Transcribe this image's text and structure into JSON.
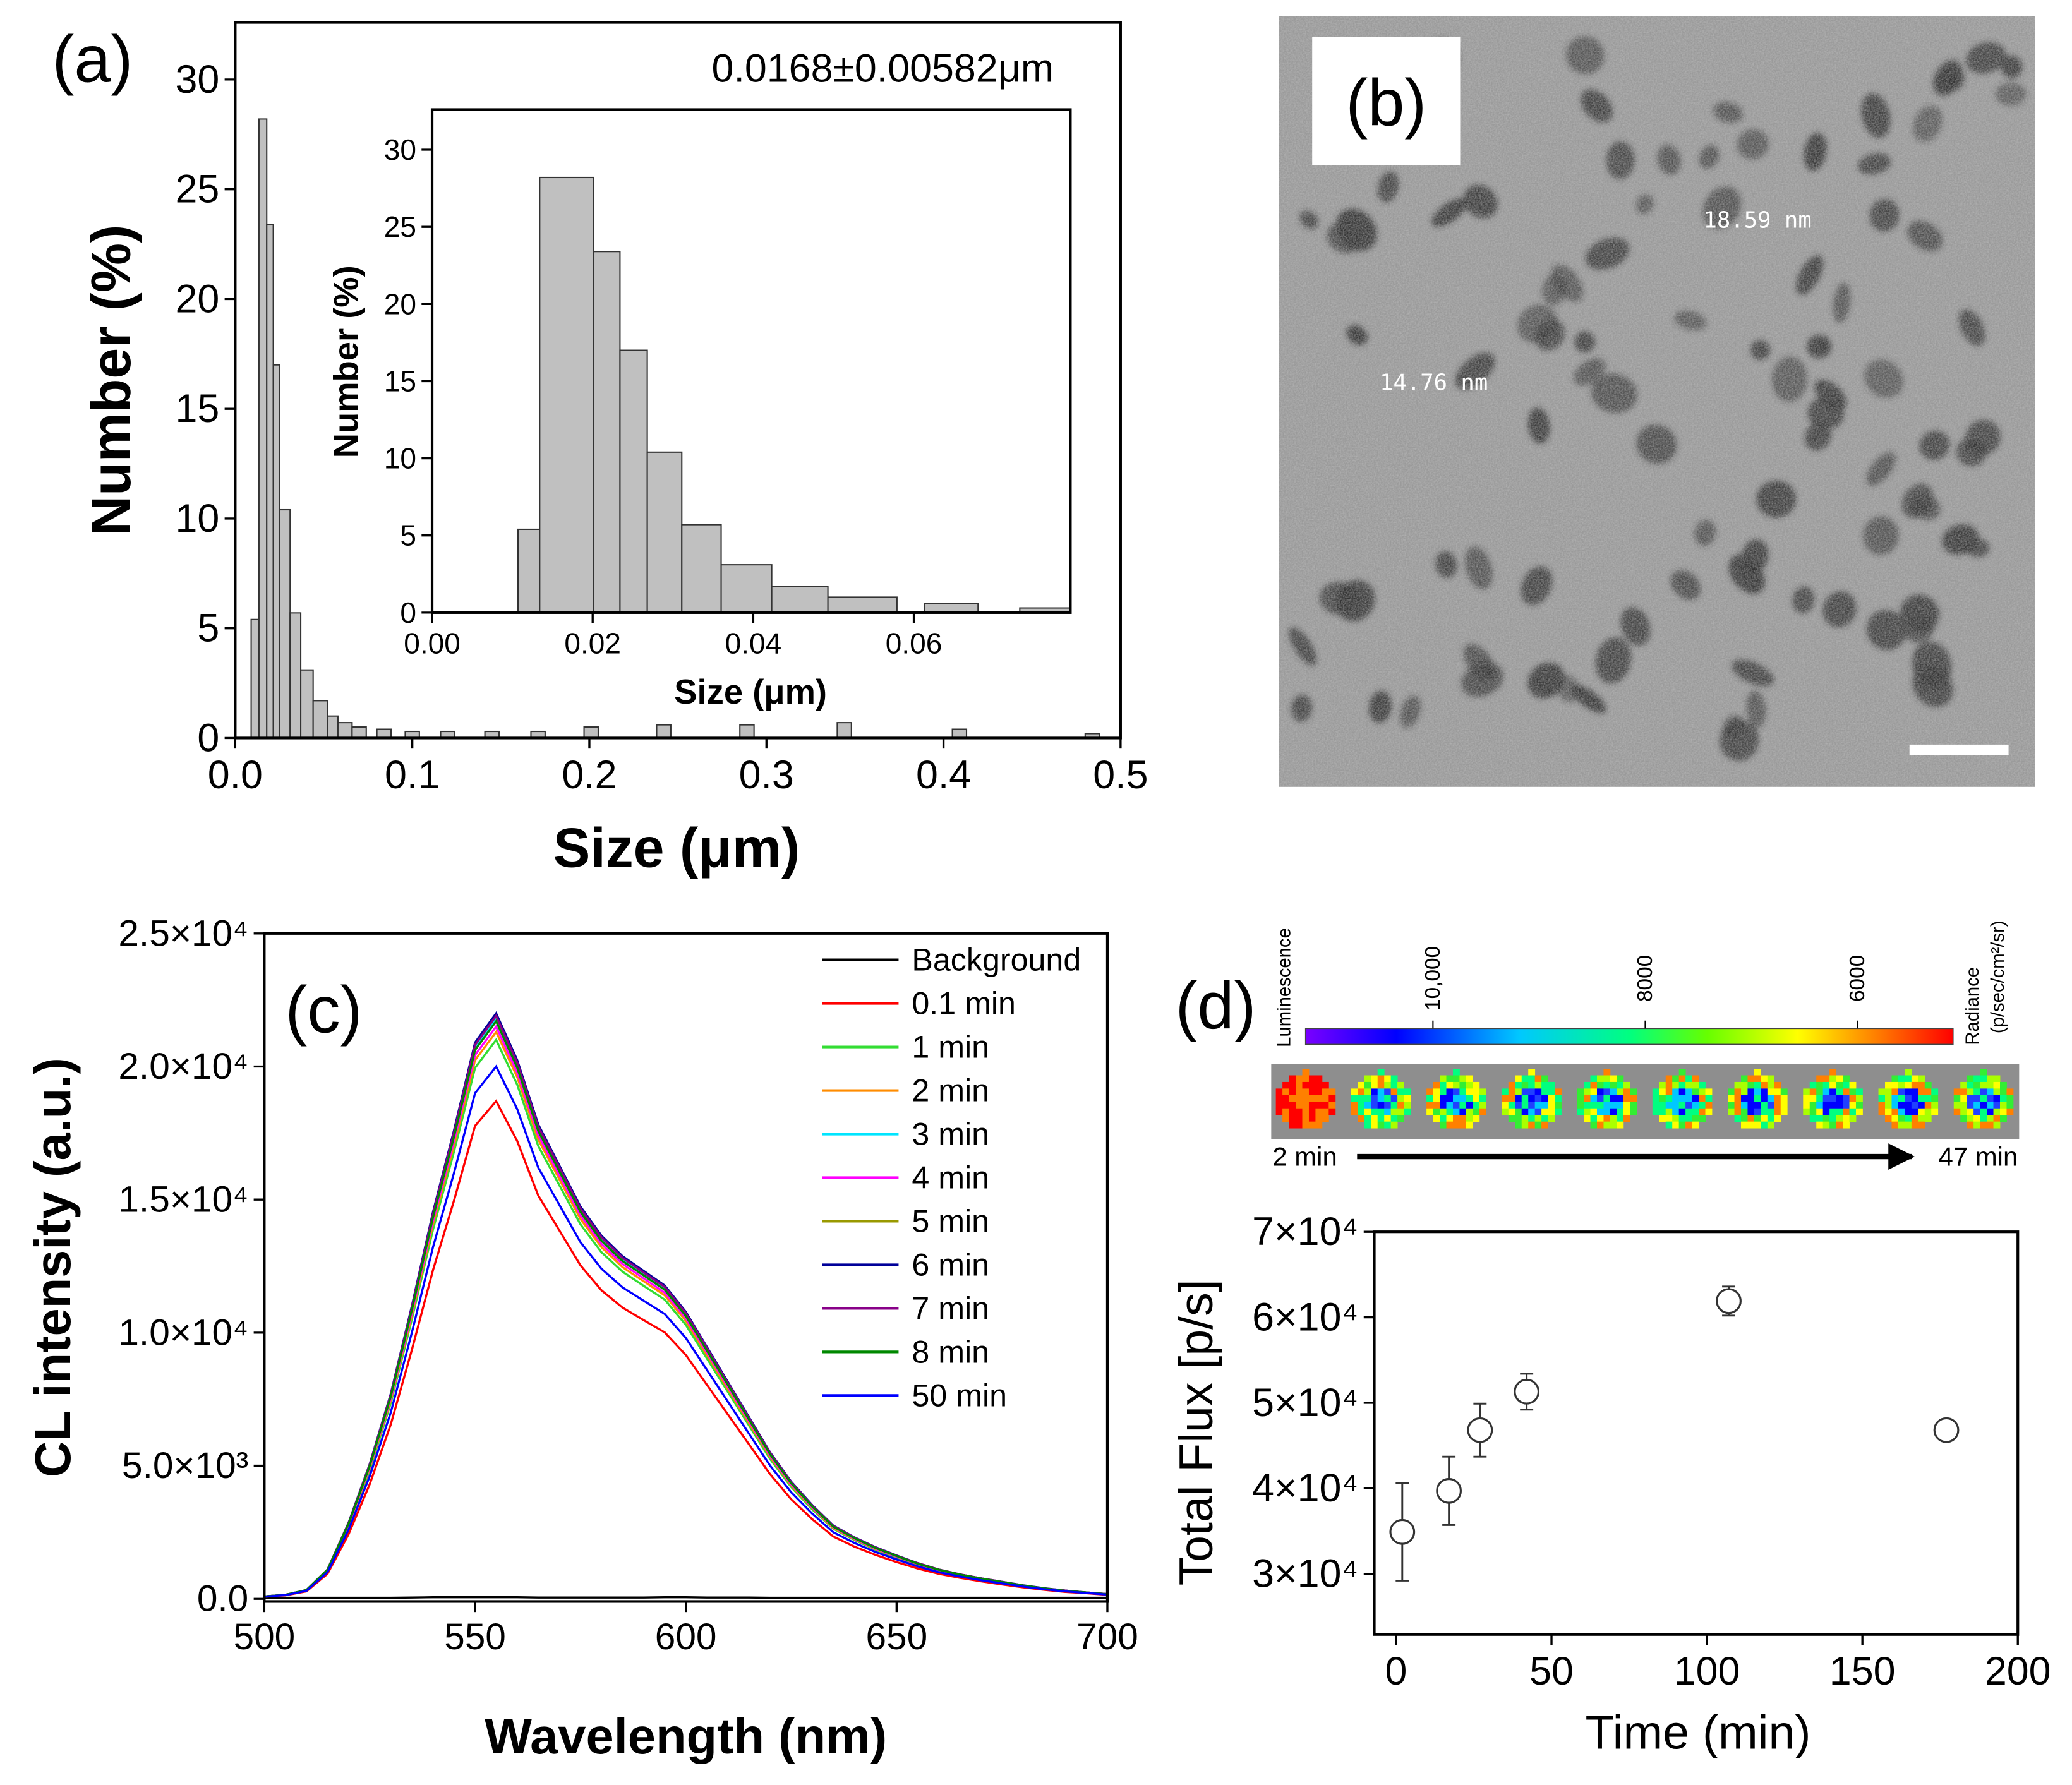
{
  "chart_data": [
    {
      "type": "histogram",
      "label": "(a)",
      "annotation": "0.0168±0.00582μm",
      "xlabel": "Size (μm)",
      "ylabel": "Number (%)",
      "color": "#c0c0c0",
      "bins": [
        0.009,
        0.0134,
        0.0178,
        0.0215,
        0.025,
        0.031,
        0.037,
        0.044,
        0.052,
        0.058,
        0.066,
        0.074,
        0.08,
        0.088,
        0.096,
        0.104,
        0.116,
        0.124,
        0.141,
        0.149,
        0.167,
        0.175,
        0.197,
        0.205,
        0.238,
        0.246,
        0.285,
        0.293,
        0.34,
        0.348,
        0.405,
        0.413,
        0.48,
        0.488
      ],
      "values": [
        5.4,
        28.2,
        23.4,
        17.0,
        10.4,
        5.7,
        3.1,
        1.7,
        1.0,
        0.7,
        0.5,
        0,
        0.4,
        0,
        0.3,
        0,
        0.3,
        0,
        0.3,
        0,
        0.3,
        0,
        0.5,
        0,
        0.6,
        0,
        0.6,
        0,
        0.7,
        0,
        0.4,
        0,
        0.2
      ],
      "xlim": [
        0,
        0.5
      ],
      "ylim": [
        0,
        32.6
      ],
      "xticks": [
        {
          "value": 0,
          "label": "0.0"
        },
        0.1,
        0.2,
        0.3,
        0.4,
        0.5
      ],
      "yticks": [
        0,
        5,
        10,
        15,
        20,
        25,
        30
      ]
    },
    {
      "type": "histogram",
      "xlabel": "Size (μm)",
      "ylabel": "Number (%)",
      "color": "#c0c0c0",
      "bins": [
        0.0107,
        0.0134,
        0.0201,
        0.0234,
        0.0268,
        0.0311,
        0.036,
        0.0423,
        0.0493,
        0.0579,
        0.0613,
        0.068,
        0.0732,
        0.0794
      ],
      "values": [
        5.4,
        28.2,
        23.4,
        17.0,
        10.4,
        5.7,
        3.1,
        1.7,
        1.0,
        0,
        0.6,
        0,
        0.3
      ],
      "xlim": [
        0,
        0.0795
      ],
      "ylim": [
        0,
        32.6
      ],
      "xticks": [
        {
          "value": 0,
          "label": "0.00"
        },
        0.02,
        0.04,
        0.06
      ],
      "yticks": [
        0,
        5,
        10,
        15,
        20,
        25,
        30
      ]
    },
    {
      "type": "line",
      "label": "(c)",
      "xlabel": "Wavelength (nm)",
      "ylabel": "CL intensity (a.u.)",
      "legend": "top-right",
      "x": [
        500,
        505,
        510,
        515,
        520,
        525,
        530,
        535,
        540,
        545,
        550,
        555,
        560,
        565,
        570,
        575,
        580,
        585,
        590,
        595,
        600,
        605,
        610,
        615,
        620,
        625,
        630,
        635,
        640,
        645,
        650,
        655,
        660,
        665,
        670,
        675,
        680,
        685,
        690,
        695,
        700
      ],
      "series": [
        {
          "name": "Background",
          "color": "#000000",
          "values": [
            40,
            40,
            40,
            40,
            40,
            40,
            40,
            50,
            60,
            60,
            60,
            60,
            60,
            50,
            50,
            50,
            50,
            50,
            50,
            60,
            60,
            50,
            50,
            50,
            40,
            40,
            40,
            40,
            40,
            40,
            40,
            40,
            40,
            40,
            40,
            40,
            40,
            40,
            40,
            40,
            40
          ]
        },
        {
          "name": "0.1 min",
          "color": "#ff0000",
          "values": [
            80,
            130,
            280,
            940,
            2430,
            4300,
            6550,
            9350,
            12340,
            14960,
            17770,
            18700,
            17200,
            15150,
            13840,
            12530,
            11590,
            10940,
            10470,
            10010,
            9160,
            8040,
            6920,
            5800,
            4680,
            3740,
            2990,
            2340,
            1960,
            1650,
            1380,
            1140,
            940,
            790,
            660,
            540,
            430,
            340,
            260,
            210,
            150
          ]
        },
        {
          "name": "1 min",
          "color": "#33dd33",
          "values": [
            80,
            150,
            320,
            1050,
            2730,
            4830,
            7350,
            10500,
            13860,
            16800,
            19950,
            21000,
            19320,
            17010,
            15540,
            14070,
            13020,
            12290,
            11760,
            11240,
            10290,
            9030,
            7770,
            6510,
            5250,
            4200,
            3360,
            2630,
            2210,
            1850,
            1550,
            1280,
            1050,
            880,
            740,
            610,
            480,
            380,
            290,
            230,
            170
          ]
        },
        {
          "name": "2 min",
          "color": "#ff8c00",
          "values": [
            90,
            150,
            320,
            1070,
            2770,
            4900,
            7460,
            10650,
            14060,
            17040,
            20240,
            21300,
            19600,
            17250,
            15760,
            14270,
            13210,
            12460,
            11930,
            11400,
            10440,
            9160,
            7880,
            6600,
            5330,
            4260,
            3410,
            2660,
            2240,
            1870,
            1580,
            1300,
            1070,
            890,
            750,
            620,
            490,
            380,
            300,
            230,
            170
          ]
        },
        {
          "name": "3 min",
          "color": "#00e5ff",
          "values": [
            90,
            150,
            330,
            1090,
            2830,
            5010,
            7630,
            10900,
            14390,
            17440,
            20710,
            21800,
            20060,
            17660,
            16130,
            14610,
            13520,
            12750,
            12210,
            11660,
            10680,
            9370,
            8070,
            6760,
            5450,
            4360,
            3490,
            2730,
            2290,
            1920,
            1610,
            1330,
            1090,
            920,
            760,
            630,
            500,
            390,
            310,
            240,
            170
          ]
        },
        {
          "name": "4 min",
          "color": "#ff00ff",
          "values": [
            90,
            150,
            320,
            1080,
            2800,
            4950,
            7530,
            10750,
            14190,
            17200,
            20430,
            21500,
            19780,
            17420,
            15910,
            14410,
            13330,
            12580,
            12040,
            11500,
            10540,
            9250,
            7960,
            6670,
            5380,
            4300,
            3440,
            2690,
            2260,
            1890,
            1590,
            1310,
            1080,
            900,
            750,
            620,
            500,
            390,
            300,
            240,
            170
          ]
        },
        {
          "name": "5 min",
          "color": "#999900",
          "values": [
            90,
            150,
            330,
            1100,
            2850,
            5040,
            7670,
            10950,
            14450,
            17520,
            20810,
            21900,
            20150,
            17740,
            16210,
            14670,
            13580,
            12810,
            12260,
            11720,
            10730,
            9420,
            8100,
            6790,
            5480,
            4380,
            3500,
            2740,
            2300,
            1930,
            1620,
            1340,
            1100,
            920,
            770,
            640,
            500,
            390,
            310,
            240,
            180
          ]
        },
        {
          "name": "6 min",
          "color": "#000099",
          "values": [
            90,
            150,
            330,
            1100,
            2860,
            5060,
            7700,
            11000,
            14520,
            17600,
            20900,
            22000,
            20240,
            17820,
            16280,
            14740,
            13640,
            12870,
            12320,
            11770,
            10780,
            9460,
            8140,
            6820,
            5500,
            4400,
            3520,
            2750,
            2310,
            1940,
            1630,
            1340,
            1100,
            920,
            770,
            640,
            510,
            400,
            310,
            240,
            180
          ]
        },
        {
          "name": "7 min",
          "color": "#880088",
          "values": [
            90,
            150,
            330,
            1100,
            2850,
            5040,
            7670,
            10950,
            14450,
            17520,
            20810,
            21900,
            20150,
            17740,
            16210,
            14670,
            13580,
            12810,
            12260,
            11720,
            10730,
            9420,
            8100,
            6790,
            5480,
            4380,
            3500,
            2740,
            2300,
            1930,
            1620,
            1340,
            1100,
            920,
            770,
            640,
            500,
            390,
            310,
            240,
            180
          ]
        },
        {
          "name": "8 min",
          "color": "#008800",
          "values": [
            90,
            150,
            330,
            1090,
            2820,
            4990,
            7600,
            10850,
            14320,
            17360,
            20620,
            21700,
            19960,
            17580,
            16060,
            14540,
            13450,
            12690,
            12150,
            11610,
            10630,
            9330,
            8030,
            6730,
            5430,
            4340,
            3470,
            2710,
            2280,
            1910,
            1610,
            1320,
            1090,
            910,
            760,
            630,
            500,
            390,
            300,
            240,
            170
          ]
        },
        {
          "name": "50 min",
          "color": "#0000ff",
          "values": [
            80,
            140,
            300,
            1000,
            2600,
            4600,
            7000,
            10000,
            13200,
            16000,
            19000,
            20000,
            18400,
            16200,
            14800,
            13400,
            12400,
            11700,
            11200,
            10700,
            9800,
            8600,
            7400,
            6200,
            5000,
            4000,
            3200,
            2500,
            2100,
            1760,
            1480,
            1220,
            1000,
            840,
            700,
            580,
            460,
            360,
            280,
            220,
            160
          ]
        }
      ],
      "xlim": [
        500,
        700
      ],
      "ylim": [
        -100,
        25000
      ],
      "xticks": [
        500,
        550,
        600,
        650,
        700
      ],
      "yticks": [
        {
          "value": 0,
          "label": "0.0"
        },
        {
          "value": 5000,
          "label": "5.0×10³"
        },
        {
          "value": 10000,
          "label": "1.0×10⁴"
        },
        {
          "value": 15000,
          "label": "1.5×10⁴"
        },
        {
          "value": 20000,
          "label": "2.0×10⁴"
        },
        {
          "value": 25000,
          "label": "2.5×10⁴"
        }
      ]
    },
    {
      "type": "scatter",
      "xlabel": "Time (min)",
      "ylabel": "Total Flux [p/s]",
      "color": "#333333",
      "x": [
        2,
        17,
        27,
        42,
        107,
        177
      ],
      "values": [
        34900,
        39700,
        46800,
        51300,
        61900,
        46800
      ],
      "errors": [
        5700,
        4000,
        3100,
        2100,
        1700,
        1000
      ],
      "xlim": [
        -7,
        200
      ],
      "ylim": [
        22900,
        70000
      ],
      "xticks": [
        0,
        50,
        100,
        150,
        200
      ],
      "yticks": [
        {
          "value": 30000,
          "label": "3×10⁴"
        },
        {
          "value": 40000,
          "label": "4×10⁴"
        },
        {
          "value": 50000,
          "label": "5×10⁴"
        },
        {
          "value": 60000,
          "label": "6×10⁴"
        },
        {
          "value": 70000,
          "label": "7×10⁴"
        }
      ]
    }
  ],
  "image_b": {
    "label": "(b)",
    "measurements": [
      "18.59 nm",
      "14.76 nm"
    ]
  },
  "luminescence_strip": {
    "label": "(d)",
    "title": "Luminescence",
    "unit": [
      "Radiance",
      "(p/sec/cm²/sr)"
    ],
    "start": "2 min",
    "end": "47 min",
    "colorbar": {
      "lim": [
        11200,
        5100
      ],
      "ticks": [
        {
          "value": 10000,
          "label": "10,000"
        },
        8000,
        6000
      ]
    }
  }
}
